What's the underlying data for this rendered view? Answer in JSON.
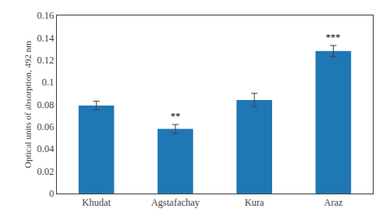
{
  "chart_data": {
    "type": "bar",
    "categories": [
      "Khudat",
      "Agstafachay",
      "Kura",
      "Araz"
    ],
    "values": [
      0.079,
      0.058,
      0.084,
      0.128
    ],
    "errors": [
      0.004,
      0.004,
      0.006,
      0.005
    ],
    "significance": [
      null,
      "**",
      null,
      "***"
    ],
    "ylabel": "Optical units of absorption, 492 nm",
    "ylim": [
      0,
      0.16
    ],
    "yticks": [
      0,
      0.02,
      0.04,
      0.06,
      0.08,
      0.1,
      0.12,
      0.14,
      0.16
    ],
    "grid": false
  }
}
